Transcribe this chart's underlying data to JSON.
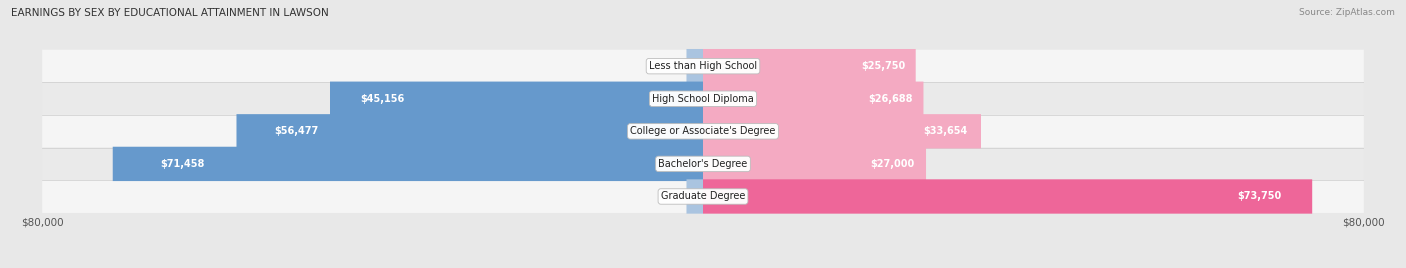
{
  "title": "EARNINGS BY SEX BY EDUCATIONAL ATTAINMENT IN LAWSON",
  "source": "Source: ZipAtlas.com",
  "categories": [
    "Less than High School",
    "High School Diploma",
    "College or Associate's Degree",
    "Bachelor's Degree",
    "Graduate Degree"
  ],
  "male_values": [
    0,
    45156,
    56477,
    71458,
    0
  ],
  "female_values": [
    25750,
    26688,
    33654,
    27000,
    73750
  ],
  "male_color_strong": "#6699cc",
  "male_color_weak": "#aac4e0",
  "female_color_strong": "#ee6699",
  "female_color_weak": "#f4aac2",
  "xlim": 80000,
  "bar_height": 0.62,
  "background_color": "#e8e8e8",
  "row_colors": [
    "#f5f5f5",
    "#eaeaea"
  ],
  "title_color": "#333333",
  "source_color": "#888888",
  "label_inside_color": "#ffffff",
  "label_outside_color": "#555555",
  "legend_male_color": "#6699cc",
  "legend_female_color": "#ee6699"
}
